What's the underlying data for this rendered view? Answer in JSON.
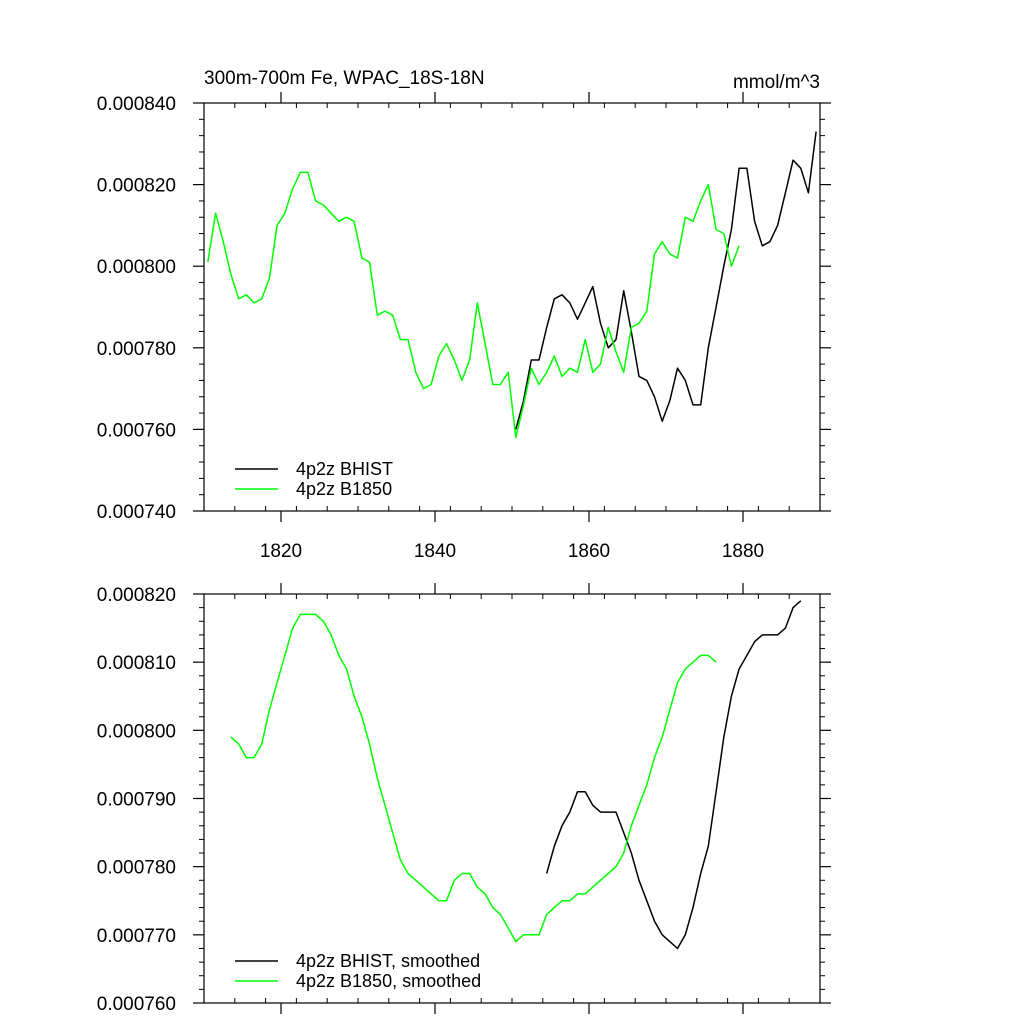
{
  "chart_data": [
    {
      "type": "line",
      "title": "300m-700m Fe, WPAC_18S-18N",
      "units": "mmol/m^3",
      "xlim": [
        1810,
        1890
      ],
      "ylim": [
        0.00074,
        0.00084
      ],
      "xticks": [
        1820,
        1840,
        1860,
        1880
      ],
      "xtick_labels": [
        "1820",
        "1840",
        "1860",
        "1880"
      ],
      "yticks": [
        0.00074,
        0.00076,
        0.00078,
        0.0008,
        0.00082,
        0.00084
      ],
      "ytick_labels": [
        "0.000740",
        "0.000760",
        "0.000780",
        "0.000800",
        "0.000820",
        "0.000840"
      ],
      "legend_position": "bottom-left",
      "series": [
        {
          "name": "4p2z BHIST",
          "color": "#000000",
          "x": [
            1850.5,
            1851.5,
            1852.5,
            1853.5,
            1854.5,
            1855.5,
            1856.5,
            1857.5,
            1858.5,
            1859.5,
            1860.5,
            1861.5,
            1862.5,
            1863.5,
            1864.5,
            1865.5,
            1866.5,
            1867.5,
            1868.5,
            1869.5,
            1870.5,
            1871.5,
            1872.5,
            1873.5,
            1874.5,
            1875.5,
            1876.5,
            1877.5,
            1878.5,
            1879.5,
            1880.5,
            1881.5,
            1882.5,
            1883.5,
            1884.5,
            1885.5,
            1886.5,
            1887.5,
            1888.5,
            1889.5
          ],
          "y": [
            0.00076,
            0.000767,
            0.000777,
            0.000777,
            0.000785,
            0.000792,
            0.000793,
            0.000791,
            0.000787,
            0.000791,
            0.000795,
            0.000786,
            0.00078,
            0.000782,
            0.000794,
            0.000784,
            0.000773,
            0.000772,
            0.000768,
            0.000762,
            0.000767,
            0.000775,
            0.000772,
            0.000766,
            0.000766,
            0.00078,
            0.00079,
            0.0008,
            0.000809,
            0.000824,
            0.000824,
            0.000811,
            0.000805,
            0.000806,
            0.00081,
            0.000818,
            0.000826,
            0.000824,
            0.000818,
            0.000833
          ]
        },
        {
          "name": "4p2z B1850",
          "color": "#00ff00",
          "x": [
            1810.5,
            1811.5,
            1812.5,
            1813.5,
            1814.5,
            1815.5,
            1816.5,
            1817.5,
            1818.5,
            1819.5,
            1820.5,
            1821.5,
            1822.5,
            1823.5,
            1824.5,
            1825.5,
            1826.5,
            1827.5,
            1828.5,
            1829.5,
            1830.5,
            1831.5,
            1832.5,
            1833.5,
            1834.5,
            1835.5,
            1836.5,
            1837.5,
            1838.5,
            1839.5,
            1840.5,
            1841.5,
            1842.5,
            1843.5,
            1844.5,
            1845.5,
            1846.5,
            1847.5,
            1848.5,
            1849.5,
            1850.5,
            1851.5,
            1852.5,
            1853.5,
            1854.5,
            1855.5,
            1856.5,
            1857.5,
            1858.5,
            1859.5,
            1860.5,
            1861.5,
            1862.5,
            1863.5,
            1864.5,
            1865.5,
            1866.5,
            1867.5,
            1868.5,
            1869.5,
            1870.5,
            1871.5,
            1872.5,
            1873.5,
            1874.5,
            1875.5,
            1876.5,
            1877.5,
            1878.5,
            1879.5
          ],
          "y": [
            0.000801,
            0.000813,
            0.000806,
            0.000798,
            0.000792,
            0.000793,
            0.000791,
            0.000792,
            0.000797,
            0.00081,
            0.000813,
            0.000819,
            0.000823,
            0.000823,
            0.000816,
            0.000815,
            0.000813,
            0.000811,
            0.000812,
            0.000811,
            0.000802,
            0.000801,
            0.000788,
            0.000789,
            0.000788,
            0.000782,
            0.000782,
            0.000774,
            0.00077,
            0.000771,
            0.000778,
            0.000781,
            0.000777,
            0.000772,
            0.000777,
            0.000791,
            0.000781,
            0.000771,
            0.000771,
            0.000774,
            0.000758,
            0.000766,
            0.000775,
            0.000771,
            0.000774,
            0.000778,
            0.000773,
            0.000775,
            0.000774,
            0.000782,
            0.000774,
            0.000776,
            0.000785,
            0.000779,
            0.000774,
            0.000785,
            0.000786,
            0.000789,
            0.000803,
            0.000806,
            0.000803,
            0.000802,
            0.000812,
            0.000811,
            0.000816,
            0.00082,
            0.000809,
            0.000808,
            0.0008,
            0.000805
          ]
        }
      ]
    },
    {
      "type": "line",
      "xlim": [
        1810,
        1890
      ],
      "ylim": [
        0.00076,
        0.00082
      ],
      "xticks": [
        1820,
        1840,
        1860,
        1880
      ],
      "xtick_labels": [],
      "yticks": [
        0.00076,
        0.00077,
        0.00078,
        0.00079,
        0.0008,
        0.00081,
        0.00082
      ],
      "ytick_labels": [
        "0.000760",
        "0.000770",
        "0.000780",
        "0.000790",
        "0.000800",
        "0.000810",
        "0.000820"
      ],
      "legend_position": "bottom-left",
      "series": [
        {
          "name": "4p2z BHIST, smoothed",
          "color": "#000000",
          "x": [
            1854.5,
            1855.5,
            1856.5,
            1857.5,
            1858.5,
            1859.5,
            1860.5,
            1861.5,
            1862.5,
            1863.5,
            1864.5,
            1865.5,
            1866.5,
            1867.5,
            1868.5,
            1869.5,
            1870.5,
            1871.5,
            1872.5,
            1873.5,
            1874.5,
            1875.5,
            1876.5,
            1877.5,
            1878.5,
            1879.5,
            1880.5,
            1881.5,
            1882.5,
            1883.5,
            1884.5,
            1885.5,
            1886.5,
            1887.5
          ],
          "y": [
            0.000779,
            0.000783,
            0.000786,
            0.000788,
            0.000791,
            0.000791,
            0.000789,
            0.000788,
            0.000788,
            0.000788,
            0.000785,
            0.000782,
            0.000778,
            0.000775,
            0.000772,
            0.00077,
            0.000769,
            0.000768,
            0.00077,
            0.000774,
            0.000779,
            0.000783,
            0.000791,
            0.000799,
            0.000805,
            0.000809,
            0.000811,
            0.000813,
            0.000814,
            0.000814,
            0.000814,
            0.000815,
            0.000818,
            0.000819
          ]
        },
        {
          "name": "4p2z B1850, smoothed",
          "color": "#00ff00",
          "x": [
            1813.5,
            1814.5,
            1815.5,
            1816.5,
            1817.5,
            1818.5,
            1819.5,
            1820.5,
            1821.5,
            1822.5,
            1823.5,
            1824.5,
            1825.5,
            1826.5,
            1827.5,
            1828.5,
            1829.5,
            1830.5,
            1831.5,
            1832.5,
            1833.5,
            1834.5,
            1835.5,
            1836.5,
            1837.5,
            1838.5,
            1839.5,
            1840.5,
            1841.5,
            1842.5,
            1843.5,
            1844.5,
            1845.5,
            1846.5,
            1847.5,
            1848.5,
            1849.5,
            1850.5,
            1851.5,
            1852.5,
            1853.5,
            1854.5,
            1855.5,
            1856.5,
            1857.5,
            1858.5,
            1859.5,
            1860.5,
            1861.5,
            1862.5,
            1863.5,
            1864.5,
            1865.5,
            1866.5,
            1867.5,
            1868.5,
            1869.5,
            1870.5,
            1871.5,
            1872.5,
            1873.5,
            1874.5,
            1875.5,
            1876.5
          ],
          "y": [
            0.000799,
            0.000798,
            0.000796,
            0.000796,
            0.000798,
            0.000803,
            0.000807,
            0.000811,
            0.000815,
            0.000817,
            0.000817,
            0.000817,
            0.000816,
            0.000814,
            0.000811,
            0.000809,
            0.000805,
            0.000802,
            0.000798,
            0.000793,
            0.000789,
            0.000785,
            0.000781,
            0.000779,
            0.000778,
            0.000777,
            0.000776,
            0.000775,
            0.000775,
            0.000778,
            0.000779,
            0.000779,
            0.000777,
            0.000776,
            0.000774,
            0.000773,
            0.000771,
            0.000769,
            0.00077,
            0.00077,
            0.00077,
            0.000773,
            0.000774,
            0.000775,
            0.000775,
            0.000776,
            0.000776,
            0.000777,
            0.000778,
            0.000779,
            0.00078,
            0.000782,
            0.000786,
            0.000789,
            0.000792,
            0.000796,
            0.000799,
            0.000803,
            0.000807,
            0.000809,
            0.00081,
            0.000811,
            0.000811,
            0.00081
          ]
        }
      ]
    }
  ]
}
